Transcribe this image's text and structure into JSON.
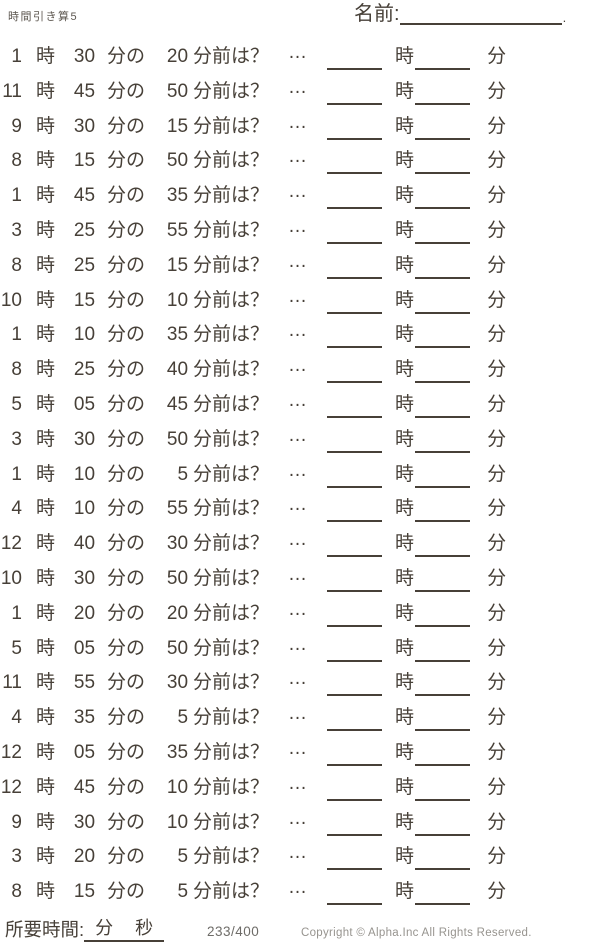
{
  "header": {
    "title": "時間引き算5",
    "name_label": "名前:",
    "name_period": "."
  },
  "labels": {
    "hour_unit": "時",
    "min_particle": "分の",
    "question": "分前は？",
    "ellipsis": "…",
    "answer_hour_unit": "時",
    "answer_min_unit": "分"
  },
  "problems": [
    {
      "hour": "1",
      "min": "30",
      "delta": "20"
    },
    {
      "hour": "11",
      "min": "45",
      "delta": "50"
    },
    {
      "hour": "9",
      "min": "30",
      "delta": "15"
    },
    {
      "hour": "8",
      "min": "15",
      "delta": "50"
    },
    {
      "hour": "1",
      "min": "45",
      "delta": "35"
    },
    {
      "hour": "3",
      "min": "25",
      "delta": "55"
    },
    {
      "hour": "8",
      "min": "25",
      "delta": "15"
    },
    {
      "hour": "10",
      "min": "15",
      "delta": "10"
    },
    {
      "hour": "1",
      "min": "10",
      "delta": "35"
    },
    {
      "hour": "8",
      "min": "25",
      "delta": "40"
    },
    {
      "hour": "5",
      "min": "05",
      "delta": "45"
    },
    {
      "hour": "3",
      "min": "30",
      "delta": "50"
    },
    {
      "hour": "1",
      "min": "10",
      "delta": "5"
    },
    {
      "hour": "4",
      "min": "10",
      "delta": "55"
    },
    {
      "hour": "12",
      "min": "40",
      "delta": "30"
    },
    {
      "hour": "10",
      "min": "30",
      "delta": "50"
    },
    {
      "hour": "1",
      "min": "20",
      "delta": "20"
    },
    {
      "hour": "5",
      "min": "05",
      "delta": "50"
    },
    {
      "hour": "11",
      "min": "55",
      "delta": "30"
    },
    {
      "hour": "4",
      "min": "35",
      "delta": "5"
    },
    {
      "hour": "12",
      "min": "05",
      "delta": "35"
    },
    {
      "hour": "12",
      "min": "45",
      "delta": "10"
    },
    {
      "hour": "9",
      "min": "30",
      "delta": "10"
    },
    {
      "hour": "3",
      "min": "20",
      "delta": "5"
    },
    {
      "hour": "8",
      "min": "15",
      "delta": "5"
    }
  ],
  "footer": {
    "elapsed_label": "所要時間:",
    "elapsed_min_unit": "分",
    "elapsed_sec_unit": "秒",
    "page_number": "233/400",
    "copyright": "Copyright ©  Alpha.Inc All Rights Reserved."
  },
  "colors": {
    "text": "#474038",
    "line": "#474038",
    "page_number": "#6e6c68",
    "copyright": "#97948f"
  }
}
